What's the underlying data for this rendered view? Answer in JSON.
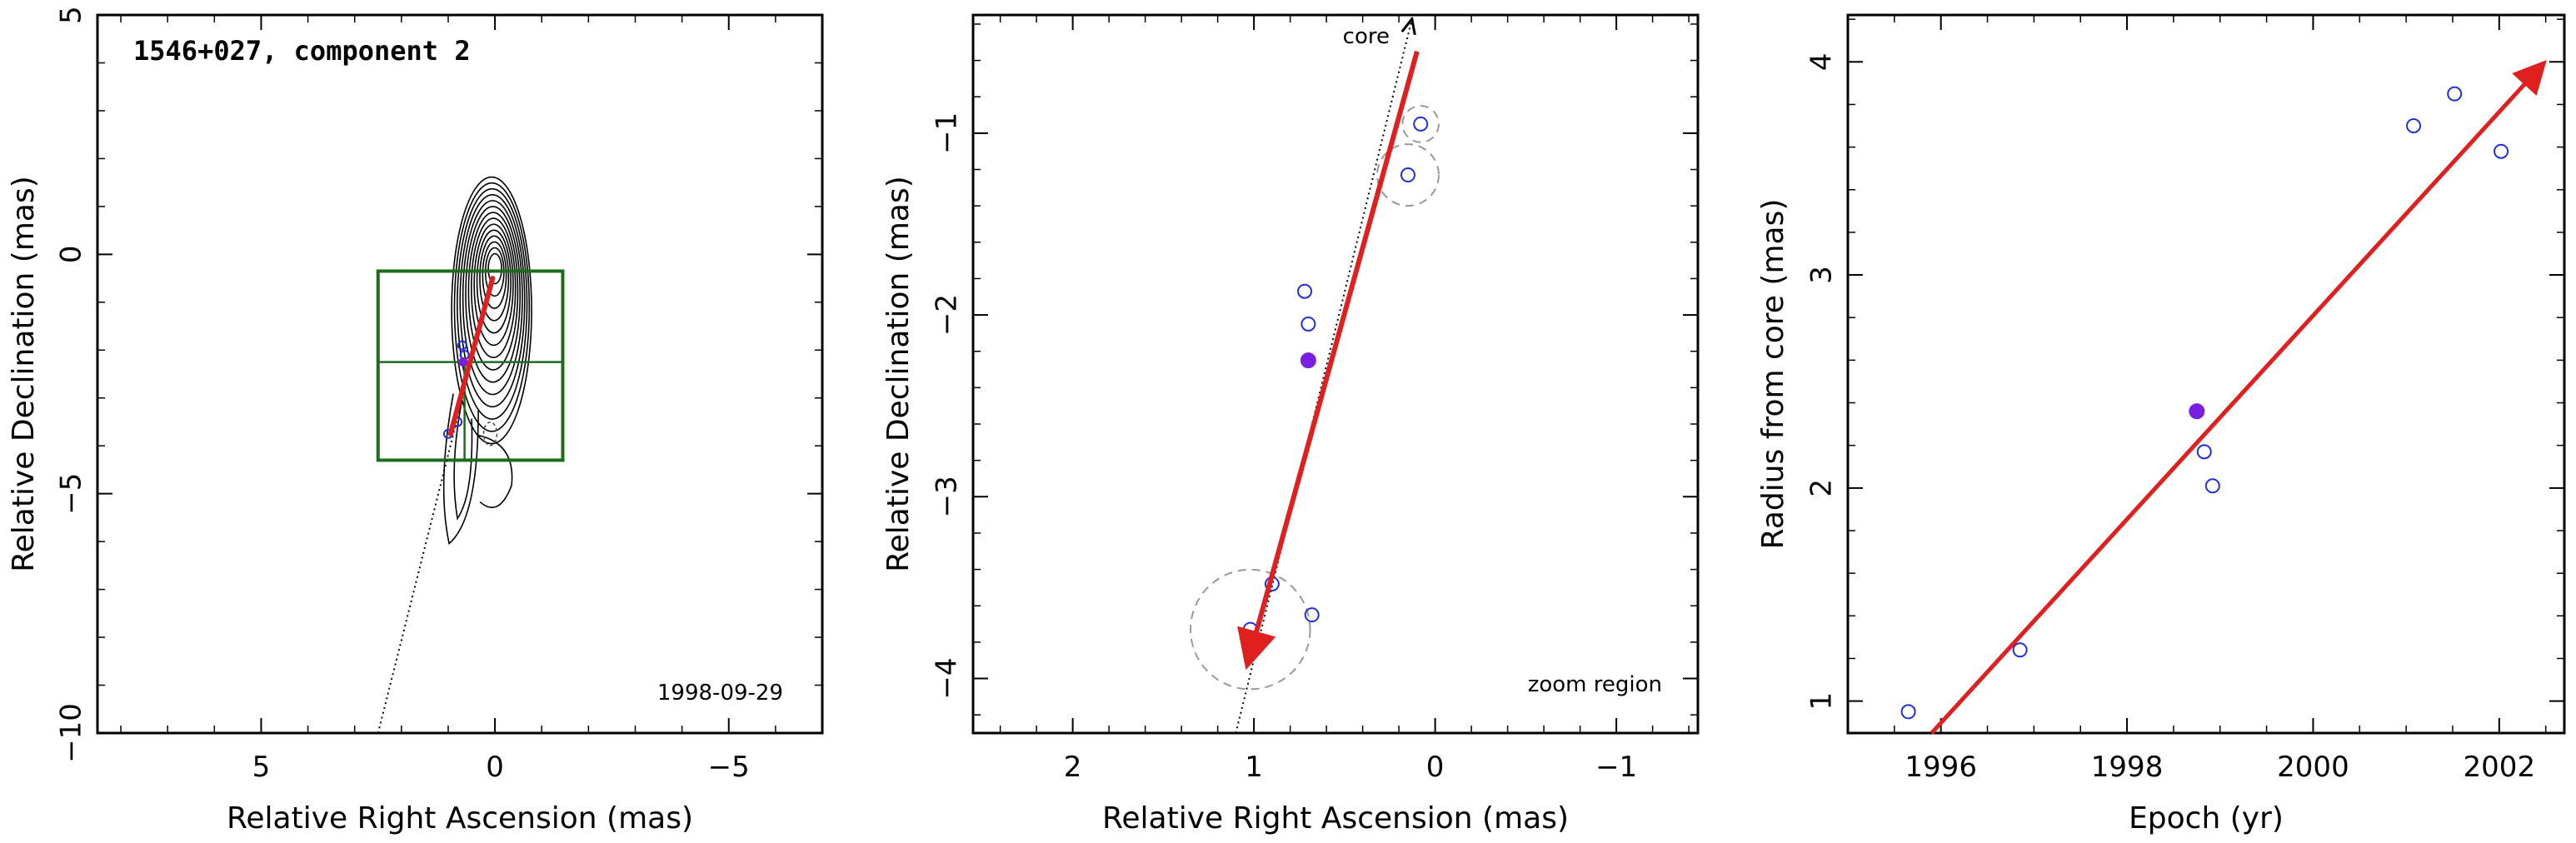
{
  "chart_data": [
    {
      "type": "scatter",
      "title": "1546+027, component 2",
      "annotation": "1998-09-29",
      "xlabel": "Relative Right Ascension (mas)",
      "ylabel": "Relative Declination (mas)",
      "xlim": [
        8.5,
        -7.0
      ],
      "ylim": [
        -10.0,
        5.0
      ],
      "xticks": [
        5,
        0,
        -5
      ],
      "yticks": [
        5,
        0,
        -5,
        -10
      ],
      "contour_center": [
        0.0,
        -0.3
      ],
      "contour_levels": 14,
      "zoom_box": {
        "x": [
          2.5,
          -1.45
        ],
        "y": [
          -0.35,
          -4.3
        ]
      },
      "zoom_crosshair": {
        "x": 0.65,
        "y": -2.25
      },
      "arrow": {
        "from": [
          0.95,
          -3.75
        ],
        "to": [
          0.05,
          -0.5
        ],
        "color": "#e0201f"
      },
      "trajectory": {
        "from": [
          2.5,
          -10.0
        ],
        "to": [
          0.05,
          -0.5
        ]
      },
      "points_open": [
        [
          0.7,
          -1.9
        ],
        [
          0.65,
          -2.1
        ],
        [
          1.0,
          -3.75
        ],
        [
          0.8,
          -3.5
        ]
      ],
      "point_filled": [
        0.68,
        -2.25
      ],
      "components_dashed": [
        [
          0.1,
          -3.75
        ]
      ]
    },
    {
      "type": "scatter",
      "annotation_top": "core",
      "annotation": "zoom region",
      "xlabel": "Relative Right Ascension (mas)",
      "ylabel": "Relative Declination (mas)",
      "xlim": [
        2.55,
        -1.45
      ],
      "ylim": [
        -4.3,
        -0.35
      ],
      "xticks": [
        2,
        1,
        0,
        -1
      ],
      "yticks": [
        -1,
        -2,
        -3,
        -4
      ],
      "arrow": {
        "from": [
          0.1,
          -0.55
        ],
        "to": [
          1.03,
          -3.9
        ],
        "color": "#e0201f"
      },
      "trajectory": {
        "from": [
          1.1,
          -4.3
        ],
        "to": [
          0.13,
          -0.38
        ]
      },
      "points_open": [
        {
          "x": 0.08,
          "y": -0.95,
          "err": 0.1
        },
        {
          "x": 0.15,
          "y": -1.23,
          "err": 0.17
        },
        {
          "x": 0.72,
          "y": -1.87,
          "err": 0
        },
        {
          "x": 0.7,
          "y": -2.05,
          "err": 0
        },
        {
          "x": 0.9,
          "y": -3.48,
          "err": 0
        },
        {
          "x": 1.02,
          "y": -3.73,
          "err": 0.33
        },
        {
          "x": 0.68,
          "y": -3.65,
          "err": 0
        }
      ],
      "point_filled": {
        "x": 0.7,
        "y": -2.25
      }
    },
    {
      "type": "scatter",
      "xlabel": "Epoch (yr)",
      "ylabel": "Radius from core (mas)",
      "xlim": [
        1995.0,
        2002.7
      ],
      "ylim": [
        0.85,
        4.22
      ],
      "xticks": [
        1996,
        1998,
        2000,
        2002
      ],
      "yticks": [
        1,
        2,
        3,
        4
      ],
      "points_open": [
        [
          1995.65,
          0.95
        ],
        [
          1996.85,
          1.24
        ],
        [
          1998.83,
          2.17
        ],
        [
          1998.92,
          2.01
        ],
        [
          2001.08,
          3.7
        ],
        [
          2001.52,
          3.85
        ],
        [
          2002.02,
          3.58
        ]
      ],
      "point_filled": [
        1998.75,
        2.36
      ],
      "fit_arrow": {
        "from": [
          1995.9,
          0.85
        ],
        "to": [
          2002.45,
          3.98
        ],
        "color": "#e0201f"
      }
    }
  ]
}
